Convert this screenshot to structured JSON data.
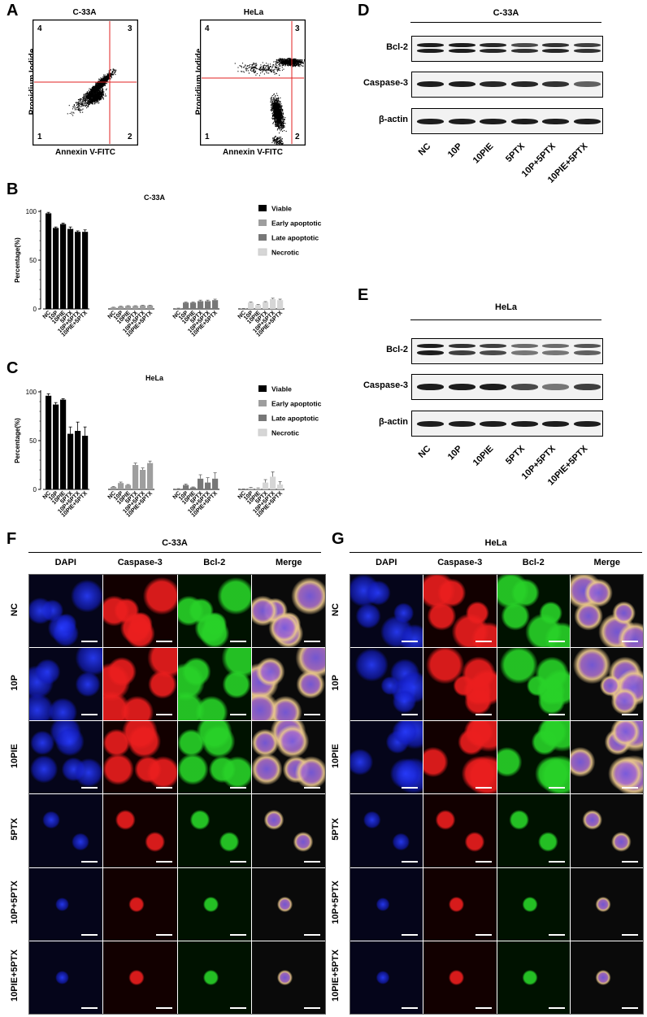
{
  "panels": {
    "A": "A",
    "B": "B",
    "C": "C",
    "D": "D",
    "E": "E",
    "F": "F",
    "G": "G"
  },
  "flow": {
    "c33a_title": "C-33A",
    "hela_title": "HeLa",
    "xlabel": "Annexin V-FITC",
    "ylabel": "Propidium Iodide",
    "quadrants": [
      "1",
      "2",
      "3",
      "4"
    ]
  },
  "chart_data": [
    {
      "type": "bar",
      "title": "C-33A",
      "ylabel": "Percentage(%)",
      "ylim": [
        0,
        100
      ],
      "yticks": [
        "0",
        "50",
        "100"
      ],
      "categories": [
        "NC",
        "10P",
        "10PIE",
        "5PTX",
        "10P+5PTX",
        "10PIE+5PTX"
      ],
      "legend_position": "top-right",
      "series": [
        {
          "name": "Viable",
          "color": "#000000",
          "values": [
            98,
            83,
            87,
            82,
            79,
            79
          ],
          "errors": [
            1,
            1,
            1,
            2,
            1,
            2
          ]
        },
        {
          "name": "Early apoptotic",
          "color": "#9e9e9e",
          "values": [
            1.5,
            2.5,
            3,
            3,
            3.5,
            3.5
          ],
          "errors": [
            0.3,
            0.3,
            0.3,
            0.3,
            0.3,
            0.3
          ]
        },
        {
          "name": "Late apoptotic",
          "color": "#777777",
          "values": [
            0.5,
            6.5,
            6.5,
            8,
            8,
            9
          ],
          "errors": [
            0.3,
            0.5,
            0.5,
            1,
            1,
            1
          ]
        },
        {
          "name": "Necrotic",
          "color": "#d6d6d6",
          "values": [
            0.3,
            6.5,
            4,
            7,
            10,
            9
          ],
          "errors": [
            0.2,
            0.5,
            0.5,
            0.5,
            1,
            1
          ]
        }
      ]
    },
    {
      "type": "bar",
      "title": "HeLa",
      "ylabel": "Percentage(%)",
      "ylim": [
        0,
        100
      ],
      "yticks": [
        "0",
        "50",
        "100"
      ],
      "categories": [
        "NC",
        "10P",
        "10PIE",
        "5PTX",
        "10P+5PTX",
        "10PIE+5PTX"
      ],
      "legend_position": "top-right",
      "series": [
        {
          "name": "Viable",
          "color": "#000000",
          "values": [
            96,
            87,
            92,
            57,
            60,
            55
          ],
          "errors": [
            2,
            2,
            1,
            7,
            9,
            9
          ]
        },
        {
          "name": "Early apoptotic",
          "color": "#9e9e9e",
          "values": [
            2.5,
            6.5,
            4.5,
            25,
            20,
            27
          ],
          "errors": [
            0.5,
            1,
            0.5,
            2,
            2,
            2
          ]
        },
        {
          "name": "Late apoptotic",
          "color": "#777777",
          "values": [
            0.5,
            4.5,
            2,
            11,
            7,
            11
          ],
          "errors": [
            0.3,
            1,
            0.5,
            4,
            5,
            6
          ]
        },
        {
          "name": "Necrotic",
          "color": "#d6d6d6",
          "values": [
            0.3,
            1.5,
            1,
            7,
            13,
            5
          ],
          "errors": [
            0.2,
            0.5,
            0.5,
            3,
            5,
            3
          ]
        }
      ]
    }
  ],
  "western": {
    "c33a": {
      "title": "C-33A",
      "rows": [
        "Bcl-2",
        "Caspase-3",
        "β-actin"
      ],
      "lanes": [
        "NC",
        "10P",
        "10PIE",
        "5PTX",
        "10P+5PTX",
        "10PIE+5PTX"
      ]
    },
    "hela": {
      "title": "HeLa",
      "rows": [
        "Bcl-2",
        "Caspase-3",
        "β-actin"
      ],
      "lanes": [
        "NC",
        "10P",
        "10PIE",
        "5PTX",
        "10P+5PTX",
        "10PIE+5PTX"
      ]
    }
  },
  "if_c33a": {
    "title": "C-33A",
    "columns": [
      "DAPI",
      "Caspase-3",
      "Bcl-2",
      "Merge"
    ],
    "rows": [
      "NC",
      "10P",
      "10PIE",
      "5PTX",
      "10P+5PTX",
      "10PIE+5PTX"
    ]
  },
  "if_hela": {
    "title": "HeLa",
    "columns": [
      "DAPI",
      "Caspase-3",
      "Bcl-2",
      "Merge"
    ],
    "rows": [
      "NC",
      "10P",
      "10PIE",
      "5PTX",
      "10P+5PTX",
      "10PIE+5PTX"
    ]
  }
}
